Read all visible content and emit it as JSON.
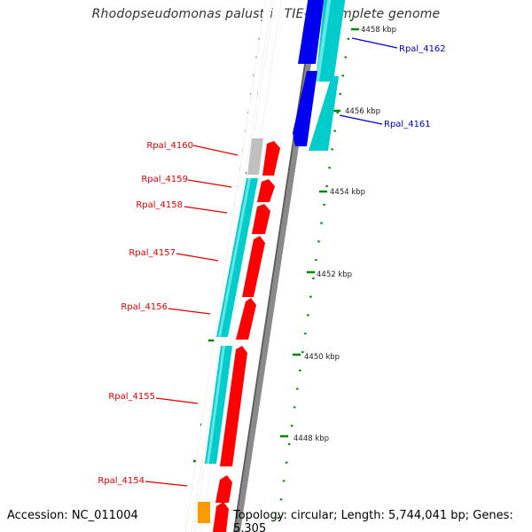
{
  "title": "Rhodopseudomonas palustris TIE-1, complete genome",
  "footer": {
    "accession": "Accession: NC_011004",
    "topology": "Topology: circular; Length: 5,744,041 bp; Genes: 5,305"
  },
  "colors": {
    "backbone": "#8a8a8a",
    "forward_gene": "#ff0000",
    "cds_band": "#00cccc",
    "reverse_gene": "#0000ee",
    "pseudo_gene": "#c0c0c0",
    "other_gene": "#ff9900",
    "tick": "#008800",
    "left_label": "#dd0000",
    "right_label": "#0000cc"
  },
  "scale_labels": [
    "4458 kbp",
    "4456 kbp",
    "4454 kbp",
    "4452 kbp",
    "4450 kbp",
    "4448 kbp"
  ],
  "left_genes": [
    "Rpal_4160",
    "Rpal_4159",
    "Rpal_4158",
    "Rpal_4157",
    "Rpal_4156",
    "Rpal_4155",
    "Rpal_4154"
  ],
  "right_genes": [
    "Rpal_4162",
    "Rpal_4161"
  ]
}
